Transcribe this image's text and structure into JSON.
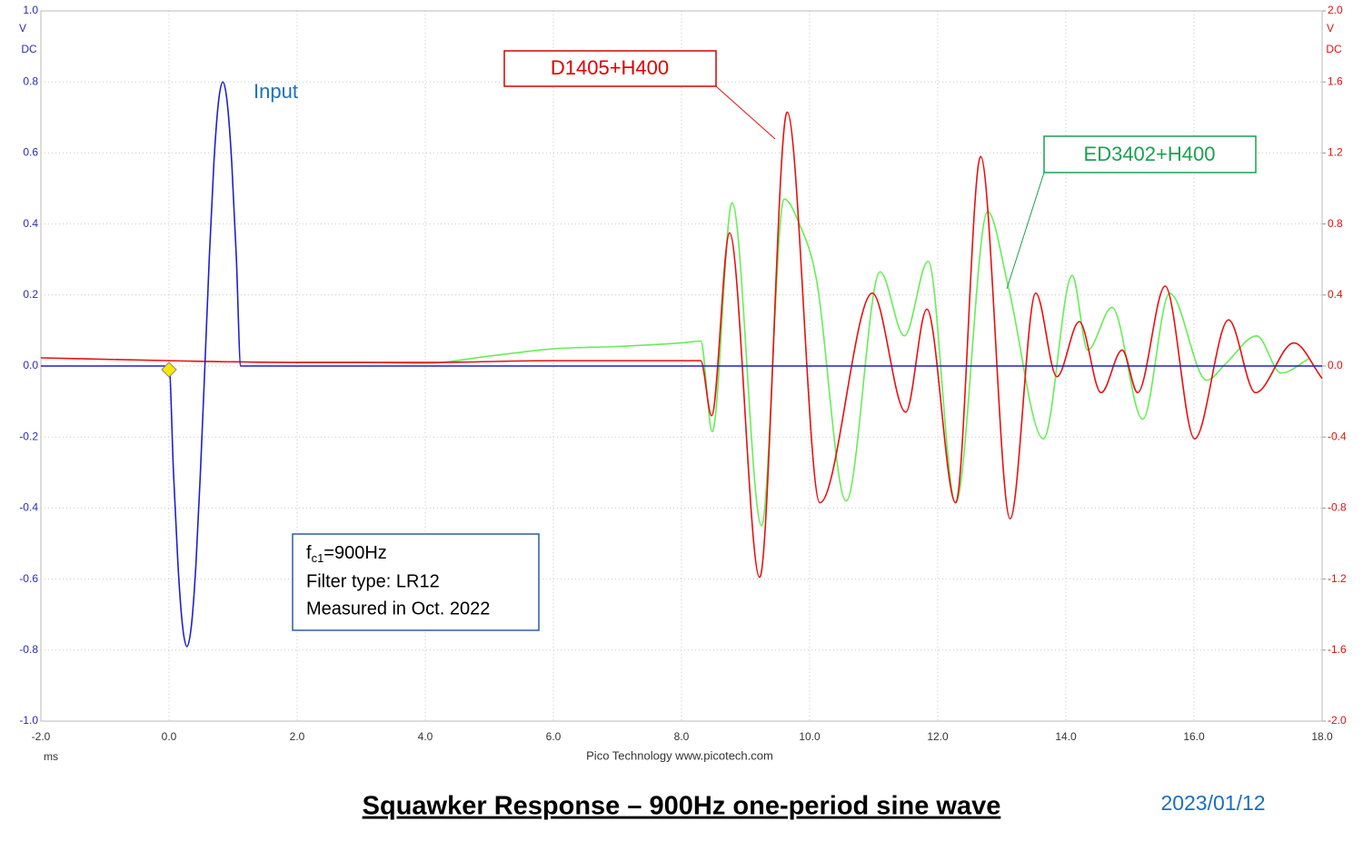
{
  "chart_data": {
    "type": "line",
    "title": "Squawker Response – 900Hz one-period sine wave",
    "date": "2023/01/12",
    "footer": "Pico Technology   www.picotech.com",
    "x_unit": "ms",
    "y_unit": [
      "V",
      "DC"
    ],
    "y2_unit": [
      "V",
      "DC"
    ],
    "xlim": [
      -2,
      18
    ],
    "xticks": [
      {
        "value": -2,
        "label": "-2.0"
      },
      {
        "value": 0,
        "label": "0.0"
      },
      {
        "value": 2,
        "label": "2.0"
      },
      {
        "value": 4,
        "label": "4.0"
      },
      {
        "value": 6,
        "label": "6.0"
      },
      {
        "value": 8,
        "label": "8.0"
      },
      {
        "value": 10,
        "label": "10.0"
      },
      {
        "value": 12,
        "label": "12.0"
      },
      {
        "value": 14,
        "label": "14.0"
      },
      {
        "value": 16,
        "label": "16.0"
      },
      {
        "value": 18,
        "label": "18.0"
      }
    ],
    "ylim": [
      -1,
      1
    ],
    "yticks": [
      {
        "value": -1,
        "label": "-1.0"
      },
      -0.8,
      -0.6,
      -0.4,
      -0.2,
      {
        "value": 0,
        "label": "0.0"
      },
      0.2,
      0.4,
      0.6,
      0.8,
      {
        "value": 1,
        "label": "1.0"
      }
    ],
    "y2lim": [
      -2,
      2
    ],
    "y2ticks": [
      {
        "value": -2,
        "label": "-2.0"
      },
      -1.6,
      -1.2,
      -0.8,
      -0.4,
      {
        "value": 0,
        "label": "0.0"
      },
      0.4,
      0.8,
      1.2,
      1.6,
      {
        "value": 2,
        "label": "2.0"
      }
    ],
    "grid": true,
    "note": [
      {
        "main": "f",
        "sub": "c1",
        "rest": "=900Hz"
      },
      "Filter type: LR12",
      "Measured in Oct. 2022"
    ],
    "series": [
      {
        "name": "ED3402+H400",
        "color": "#66ee55",
        "axis": "y2",
        "x": [
          1.97,
          3,
          4,
          5,
          6,
          7,
          8,
          8.3,
          8.48,
          8.79,
          9.25,
          9.6,
          9.84,
          10.1,
          10.57,
          11.1,
          11.48,
          11.85,
          12.28,
          12.78,
          13.1,
          13.65,
          14.1,
          14.34,
          14.72,
          15.2,
          15.62,
          16.2,
          16.5,
          16.98,
          17.36,
          17.79
        ],
        "values": [
          0.02,
          0.02,
          0.015,
          0.056,
          0.097,
          0.11,
          0.13,
          0.14,
          -0.37,
          0.92,
          -0.9,
          0.94,
          0.8,
          0.5,
          -0.76,
          0.53,
          0.17,
          0.59,
          -0.77,
          0.87,
          0.45,
          -0.41,
          0.51,
          0.09,
          0.33,
          -0.3,
          0.41,
          -0.08,
          0.015,
          0.17,
          -0.04,
          0.04
        ]
      },
      {
        "name": "D1405+H400",
        "color": "#e81010",
        "axis": "y2",
        "x": [
          -2,
          0,
          2,
          4,
          6,
          8.3,
          8.47,
          8.75,
          9.22,
          9.65,
          10.16,
          10.98,
          11.5,
          11.83,
          12.28,
          12.67,
          13.13,
          13.53,
          13.86,
          14.21,
          14.55,
          14.88,
          15.12,
          15.55,
          16.01,
          16.54,
          16.96,
          17.56,
          18
        ],
        "values": [
          0.046,
          0.03,
          0.02,
          0.02,
          0.03,
          0.03,
          -0.28,
          0.75,
          -1.19,
          1.43,
          -0.77,
          0.41,
          -0.26,
          0.32,
          -0.77,
          1.18,
          -0.86,
          0.41,
          -0.06,
          0.25,
          -0.15,
          0.09,
          -0.15,
          0.45,
          -0.41,
          0.26,
          -0.15,
          0.13,
          -0.07
        ]
      },
      {
        "name": "Input",
        "color": "#1f1fd0",
        "axis": "y",
        "x": [
          -2,
          0,
          0.07,
          0.14,
          0.21,
          0.28,
          0.35,
          0.42,
          0.49,
          0.56,
          0.63,
          0.7,
          0.77,
          0.84,
          0.91,
          0.98,
          1.05,
          1.12,
          18
        ],
        "values": [
          0,
          0,
          -0.3,
          -0.56,
          -0.73,
          -0.79,
          -0.73,
          -0.56,
          -0.3,
          0,
          0.31,
          0.57,
          0.74,
          0.8,
          0.74,
          0.57,
          0.31,
          0,
          0
        ]
      }
    ]
  }
}
